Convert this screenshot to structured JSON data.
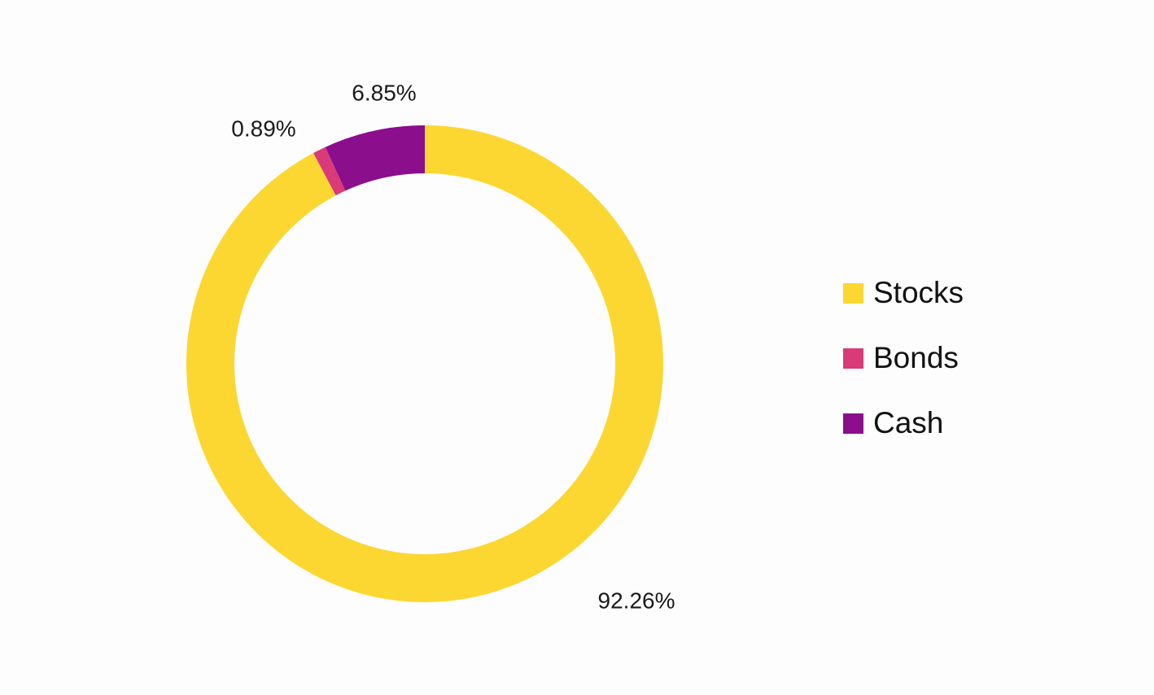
{
  "chart_data": {
    "type": "pie",
    "variant": "donut",
    "title": "",
    "categories": [
      "Stocks",
      "Bonds",
      "Cash"
    ],
    "values": [
      92.26,
      0.89,
      6.85
    ],
    "value_labels": [
      "92.26%",
      "0.89%",
      "6.85%"
    ],
    "unit": "%",
    "colors": [
      "#fcd731",
      "#d93a78",
      "#8b0e8c"
    ],
    "start_angle_deg": 0,
    "direction": "clockwise",
    "legend_placement": "right"
  }
}
